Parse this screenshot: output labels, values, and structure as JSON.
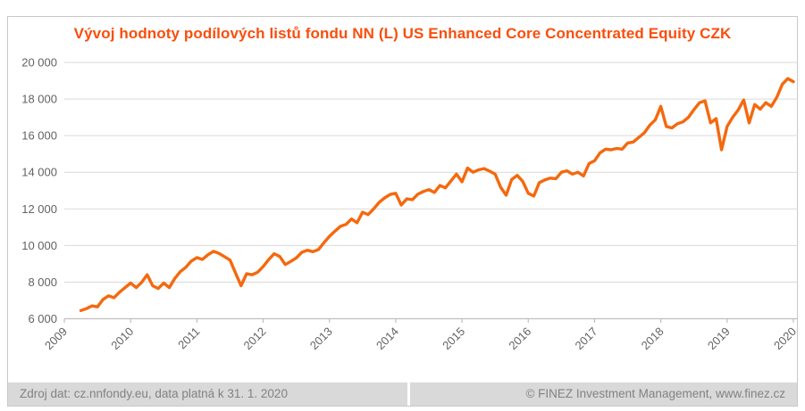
{
  "header": {
    "title": "Vývoj hodnoty podílových listů fondu NN (L) US Enhanced Core Concentrated Equity CZK",
    "title_color": "#fa4e0d"
  },
  "footer": {
    "left_text": "Zdroj dat: cz.nnfondy.eu, data platná k 31. 1. 2020",
    "right_text": "© FINEZ Investment Management, www.finez.cz",
    "band_color": "#d9d9d9",
    "text_color": "#828282"
  },
  "chart_data": {
    "type": "line",
    "title": "Vývoj hodnoty podílových listů fondu NN (L) US Enhanced Core Concentrated Equity CZK",
    "xlabel": "",
    "ylabel": "",
    "ylim": [
      6000,
      20000
    ],
    "y_step": 2000,
    "y_tick_labels": [
      "20 000",
      "18 000",
      "16 000",
      "14 000",
      "12 000",
      "10 000",
      "8 000",
      "6 000"
    ],
    "x_tick_labels": [
      "2009",
      "2010",
      "2011",
      "2012",
      "2013",
      "2014",
      "2015",
      "2016",
      "2017",
      "2018",
      "2019",
      "2020"
    ],
    "x_start": "2009-04",
    "x_end": "2020-01",
    "frequency": "monthly",
    "grid": "horizontal",
    "legend": "none",
    "line_color": "#f4690e",
    "gridline_color": "#d9d9d9",
    "axis_color": "#bfbfbf",
    "tick_label_color": "#636363",
    "series": [
      {
        "name": "NN (L) US Enhanced Core Concentrated Equity CZK",
        "values": [
          6450,
          6550,
          6700,
          6650,
          7050,
          7250,
          7150,
          7450,
          7700,
          7950,
          7700,
          7980,
          8400,
          7800,
          7650,
          7950,
          7700,
          8200,
          8570,
          8810,
          9150,
          9340,
          9240,
          9490,
          9680,
          9570,
          9390,
          9200,
          8500,
          7800,
          8460,
          8400,
          8540,
          8850,
          9230,
          9550,
          9400,
          8960,
          9130,
          9320,
          9630,
          9740,
          9660,
          9780,
          10150,
          10500,
          10780,
          11050,
          11150,
          11450,
          11240,
          11820,
          11690,
          12000,
          12360,
          12600,
          12790,
          12850,
          12210,
          12550,
          12500,
          12800,
          12950,
          13050,
          12900,
          13280,
          13150,
          13530,
          13900,
          13480,
          14230,
          14000,
          14130,
          14200,
          14060,
          13900,
          13180,
          12750,
          13600,
          13830,
          13500,
          12850,
          12700,
          13430,
          13580,
          13680,
          13650,
          14000,
          14080,
          13900,
          14000,
          13800,
          14480,
          14630,
          15060,
          15260,
          15230,
          15300,
          15260,
          15600,
          15650,
          15900,
          16150,
          16570,
          16870,
          17600,
          16500,
          16420,
          16650,
          16750,
          17000,
          17420,
          17800,
          17900,
          16700,
          16930,
          15230,
          16500,
          17000,
          17400,
          17950,
          16700,
          17700,
          17450,
          17800,
          17600,
          18100,
          18800,
          19120,
          18950
        ]
      }
    ]
  }
}
